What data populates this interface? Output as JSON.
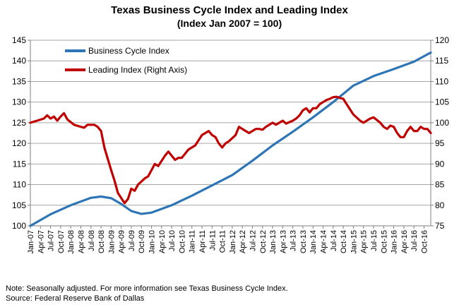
{
  "chart_data": {
    "type": "line",
    "title": "Texas Business Cycle Index and Leading Index",
    "subtitle": "(Index Jan 2007 = 100)",
    "y_left": {
      "min": 100,
      "max": 145,
      "step": 5
    },
    "y_right": {
      "min": 75,
      "max": 120,
      "step": 5
    },
    "x_range": [
      "2007-01",
      "2016-12"
    ],
    "x_tick_labels": [
      "Jan-07",
      "Apr-07",
      "Jul-07",
      "Oct-07",
      "Jan-08",
      "Apr-08",
      "Jul-08",
      "Oct-08",
      "Jan-09",
      "Apr-09",
      "Jul-09",
      "Oct-09",
      "Jan-10",
      "Apr-10",
      "Jul-10",
      "Oct-10",
      "Jan-11",
      "Apr-11",
      "Jul-11",
      "Oct-11",
      "Jan-12",
      "Apr-12",
      "Jul-12",
      "Oct-12",
      "Jan-13",
      "Apr-13",
      "Jul-13",
      "Oct-13",
      "Jan-14",
      "Apr-14",
      "Jul-14",
      "Oct-14",
      "Jan-15",
      "Apr-15",
      "Jul-15",
      "Oct-15",
      "Jan-16",
      "Apr-16",
      "Jul-16",
      "Oct-16"
    ],
    "grid": true,
    "legend_position": "top-left",
    "series": [
      {
        "name": "Business Cycle Index",
        "axis": "left",
        "color": "#2e75b6",
        "points": [
          [
            "2007-01",
            100
          ],
          [
            "2007-07",
            102.8
          ],
          [
            "2008-01",
            105
          ],
          [
            "2008-07",
            106.8
          ],
          [
            "2008-10",
            107.1
          ],
          [
            "2009-01",
            106.7
          ],
          [
            "2009-04",
            105.3
          ],
          [
            "2009-07",
            103.6
          ],
          [
            "2009-10",
            102.9
          ],
          [
            "2010-01",
            103.2
          ],
          [
            "2010-07",
            105
          ],
          [
            "2011-01",
            107.3
          ],
          [
            "2011-07",
            109.8
          ],
          [
            "2012-01",
            112.3
          ],
          [
            "2012-07",
            115.8
          ],
          [
            "2013-01",
            119.5
          ],
          [
            "2013-07",
            122.8
          ],
          [
            "2014-01",
            126.3
          ],
          [
            "2014-07",
            130
          ],
          [
            "2014-10",
            132
          ],
          [
            "2015-01",
            134
          ],
          [
            "2015-07",
            136.3
          ],
          [
            "2016-01",
            138
          ],
          [
            "2016-07",
            139.8
          ],
          [
            "2016-12",
            142
          ]
        ]
      },
      {
        "name": "Leading Index (Right Axis)",
        "axis": "right",
        "color": "#c00000",
        "points": [
          [
            "2007-01",
            100
          ],
          [
            "2007-03",
            100.5
          ],
          [
            "2007-05",
            101
          ],
          [
            "2007-06",
            101.8
          ],
          [
            "2007-07",
            101
          ],
          [
            "2007-08",
            101.5
          ],
          [
            "2007-09",
            100.5
          ],
          [
            "2007-10",
            101.5
          ],
          [
            "2007-11",
            102.3
          ],
          [
            "2007-12",
            100.8
          ],
          [
            "2008-02",
            99.5
          ],
          [
            "2008-04",
            99
          ],
          [
            "2008-05",
            98.8
          ],
          [
            "2008-06",
            99.5
          ],
          [
            "2008-08",
            99.5
          ],
          [
            "2008-09",
            99
          ],
          [
            "2008-10",
            98
          ],
          [
            "2008-11",
            94
          ],
          [
            "2009-01",
            88.5
          ],
          [
            "2009-02",
            86
          ],
          [
            "2009-03",
            83
          ],
          [
            "2009-05",
            80.5
          ],
          [
            "2009-06",
            81.5
          ],
          [
            "2009-07",
            84
          ],
          [
            "2009-08",
            83.5
          ],
          [
            "2009-09",
            85
          ],
          [
            "2009-11",
            86.5
          ],
          [
            "2009-12",
            87
          ],
          [
            "2010-02",
            90
          ],
          [
            "2010-03",
            89.5
          ],
          [
            "2010-05",
            92
          ],
          [
            "2010-06",
            93
          ],
          [
            "2010-07",
            92
          ],
          [
            "2010-08",
            91
          ],
          [
            "2010-09",
            91.5
          ],
          [
            "2010-10",
            91.5
          ],
          [
            "2010-11",
            92.5
          ],
          [
            "2010-12",
            93.5
          ],
          [
            "2011-02",
            94.5
          ],
          [
            "2011-04",
            97
          ],
          [
            "2011-05",
            97.5
          ],
          [
            "2011-06",
            98
          ],
          [
            "2011-07",
            97
          ],
          [
            "2011-08",
            96.5
          ],
          [
            "2011-09",
            95
          ],
          [
            "2011-10",
            94
          ],
          [
            "2011-11",
            95
          ],
          [
            "2011-12",
            95.5
          ],
          [
            "2012-02",
            97
          ],
          [
            "2012-03",
            99
          ],
          [
            "2012-05",
            98
          ],
          [
            "2012-06",
            97.5
          ],
          [
            "2012-08",
            98.5
          ],
          [
            "2012-09",
            98.5
          ],
          [
            "2012-10",
            98.3
          ],
          [
            "2012-11",
            99
          ],
          [
            "2013-01",
            100
          ],
          [
            "2013-02",
            99.5
          ],
          [
            "2013-04",
            100.5
          ],
          [
            "2013-05",
            99.8
          ],
          [
            "2013-07",
            100.5
          ],
          [
            "2013-08",
            101
          ],
          [
            "2013-09",
            101.8
          ],
          [
            "2013-10",
            103
          ],
          [
            "2013-11",
            103.5
          ],
          [
            "2013-12",
            102.5
          ],
          [
            "2014-01",
            103.5
          ],
          [
            "2014-02",
            103.5
          ],
          [
            "2014-03",
            104.5
          ],
          [
            "2014-04",
            105
          ],
          [
            "2014-05",
            105.5
          ],
          [
            "2014-06",
            105.8
          ],
          [
            "2014-07",
            106.2
          ],
          [
            "2014-08",
            106.3
          ],
          [
            "2014-09",
            106
          ],
          [
            "2014-10",
            105.8
          ],
          [
            "2014-11",
            104.5
          ],
          [
            "2015-01",
            102
          ],
          [
            "2015-03",
            100.5
          ],
          [
            "2015-04",
            100
          ],
          [
            "2015-06",
            101
          ],
          [
            "2015-07",
            101.3
          ],
          [
            "2015-09",
            100
          ],
          [
            "2015-10",
            99
          ],
          [
            "2015-11",
            98.5
          ],
          [
            "2015-12",
            99.3
          ],
          [
            "2016-01",
            99
          ],
          [
            "2016-02",
            97.5
          ],
          [
            "2016-03",
            96.5
          ],
          [
            "2016-04",
            96.5
          ],
          [
            "2016-05",
            98
          ],
          [
            "2016-06",
            99
          ],
          [
            "2016-07",
            98
          ],
          [
            "2016-08",
            98
          ],
          [
            "2016-09",
            99
          ],
          [
            "2016-10",
            98.5
          ],
          [
            "2016-11",
            98.5
          ],
          [
            "2016-12",
            97.5
          ]
        ]
      }
    ]
  },
  "footer": {
    "note": "Note: Seasonally adjusted. For more information see Texas Business Cycle Index.",
    "source": "Source: Federal Reserve Bank of Dallas"
  }
}
